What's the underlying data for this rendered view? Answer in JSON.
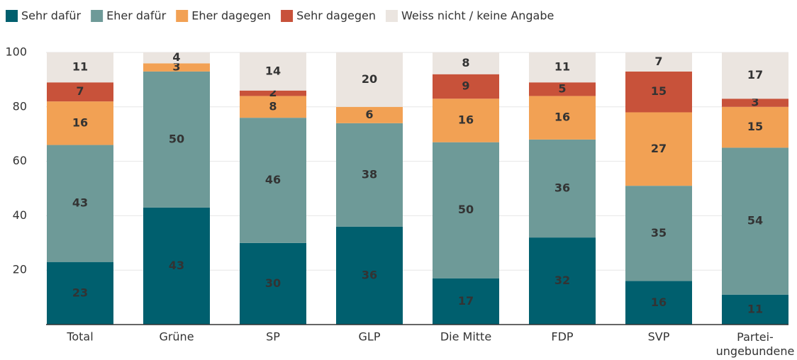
{
  "chart_data": {
    "type": "stacked_bar",
    "categories": [
      "Total",
      "Grüne",
      "SP",
      "GLP",
      "Die Mitte",
      "FDP",
      "SVP",
      "Partei-\nungebundene"
    ],
    "series": [
      {
        "name": "Sehr dafür",
        "color": "#005f6e",
        "values": [
          23,
          43,
          30,
          36,
          17,
          32,
          16,
          11
        ]
      },
      {
        "name": "Eher dafür",
        "color": "#6e9a98",
        "values": [
          43,
          50,
          46,
          38,
          50,
          36,
          35,
          54
        ]
      },
      {
        "name": "Eher dagegen",
        "color": "#f2a154",
        "values": [
          16,
          3,
          8,
          6,
          16,
          16,
          27,
          15
        ]
      },
      {
        "name": "Sehr dagegen",
        "color": "#c8523a",
        "values": [
          7,
          null,
          2,
          null,
          9,
          5,
          15,
          3
        ]
      },
      {
        "name": "Weiss nicht / keine Angabe",
        "color": "#ebe5e0",
        "values": [
          11,
          4,
          14,
          20,
          8,
          11,
          7,
          17
        ]
      }
    ],
    "ylim": [
      0,
      100
    ],
    "yticks": [
      20,
      40,
      60,
      80,
      100
    ],
    "grid": true,
    "legend": "top"
  }
}
